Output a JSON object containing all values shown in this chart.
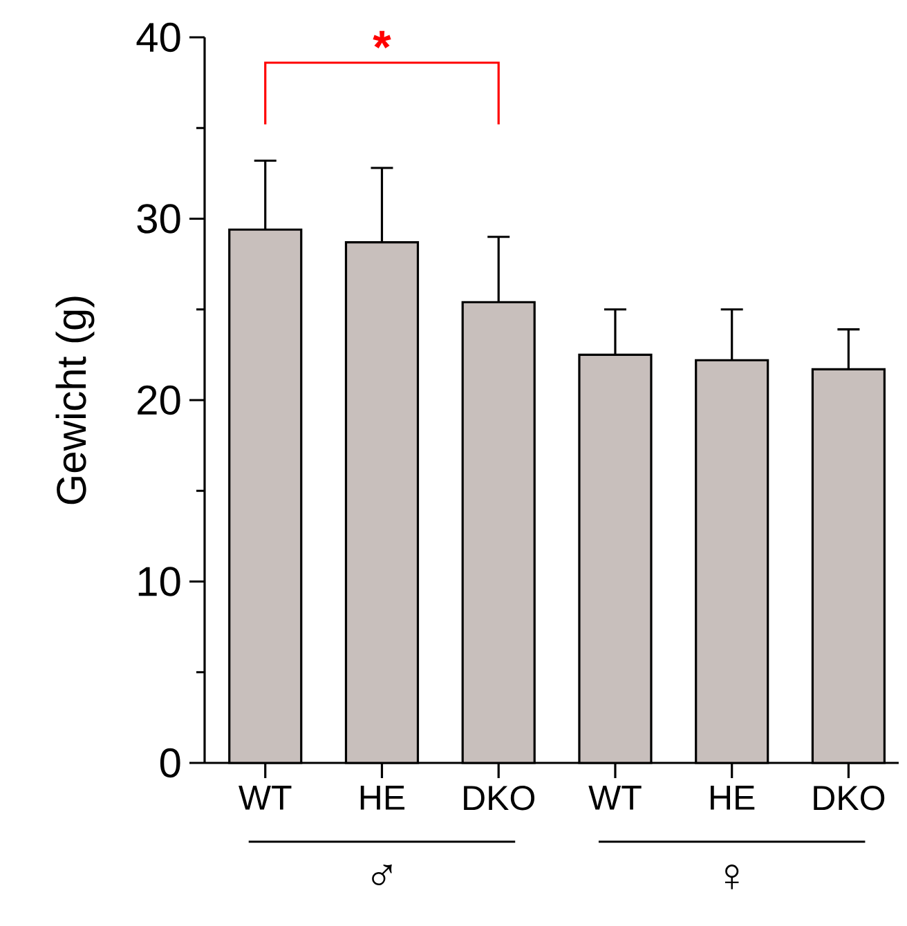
{
  "chart_data": {
    "type": "bar",
    "ylabel": "Gewicht (g)",
    "categories": [
      "WT",
      "HE",
      "DKO",
      "WT",
      "HE",
      "DKO"
    ],
    "values": [
      29.4,
      28.7,
      25.4,
      22.5,
      22.2,
      21.7
    ],
    "errors": [
      [
        29.4,
        33.2
      ],
      [
        28.7,
        32.8
      ],
      [
        25.4,
        29.0
      ],
      [
        22.5,
        25.0
      ],
      [
        22.2,
        25.0
      ],
      [
        21.7,
        23.9
      ]
    ],
    "color": "#c8bfbc",
    "ylim": [
      0,
      40
    ],
    "yticks": [
      0,
      {
        "value": 5,
        "label": null
      },
      10,
      {
        "value": 15,
        "label": null
      },
      20,
      {
        "value": 25,
        "label": null
      },
      30,
      {
        "value": 35,
        "label": null
      },
      40
    ],
    "annotations": [
      "*",
      "♂",
      "♀"
    ],
    "grid": false
  }
}
